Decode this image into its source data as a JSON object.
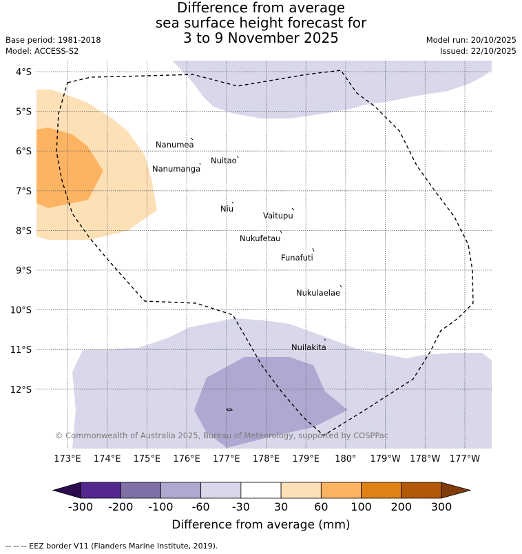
{
  "title": {
    "line1": "Difference from average",
    "line2": "sea surface height forecast for",
    "line3": "3 to 9 November 2025"
  },
  "meta": {
    "base_period": "Base period: 1981-2018",
    "model": "Model: ACCESS-S2",
    "model_run": "Model run: 20/10/2025",
    "issued": "Issued: 22/10/2025"
  },
  "map": {
    "lat_labels": [
      "4°S",
      "5°S",
      "6°S",
      "7°S",
      "8°S",
      "9°S",
      "10°S",
      "11°S",
      "12°S"
    ],
    "lon_labels": [
      "173°E",
      "174°E",
      "175°E",
      "176°E",
      "177°E",
      "178°E",
      "179°E",
      "180°",
      "179°W",
      "178°W",
      "177°W"
    ],
    "islands": [
      "Nanumea",
      "Nuitao",
      "Nanumanga",
      "Niu",
      "Vaitupu",
      "Nukufetau",
      "Funafuti",
      "Nukulaelae",
      "Nuilakita"
    ],
    "copyright": "© Commonwealth of Australia 2025, Bureau of Meteorology, supported by COSPPac"
  },
  "colorbar": {
    "ticks": [
      "-300",
      "-200",
      "-100",
      "-60",
      "-30",
      "30",
      "60",
      "100",
      "200",
      "300"
    ],
    "colors": [
      "#2d0b4f",
      "#54278f",
      "#7f70a8",
      "#afa9d1",
      "#d8d8ea",
      "#ffffff",
      "#fde0b6",
      "#fdb462",
      "#e08214",
      "#b35806",
      "#7f3b08"
    ],
    "label": "Difference from average (mm)"
  },
  "footer": "--  --  -- EEZ border V11 (Flanders Marine Institute, 2019)."
}
